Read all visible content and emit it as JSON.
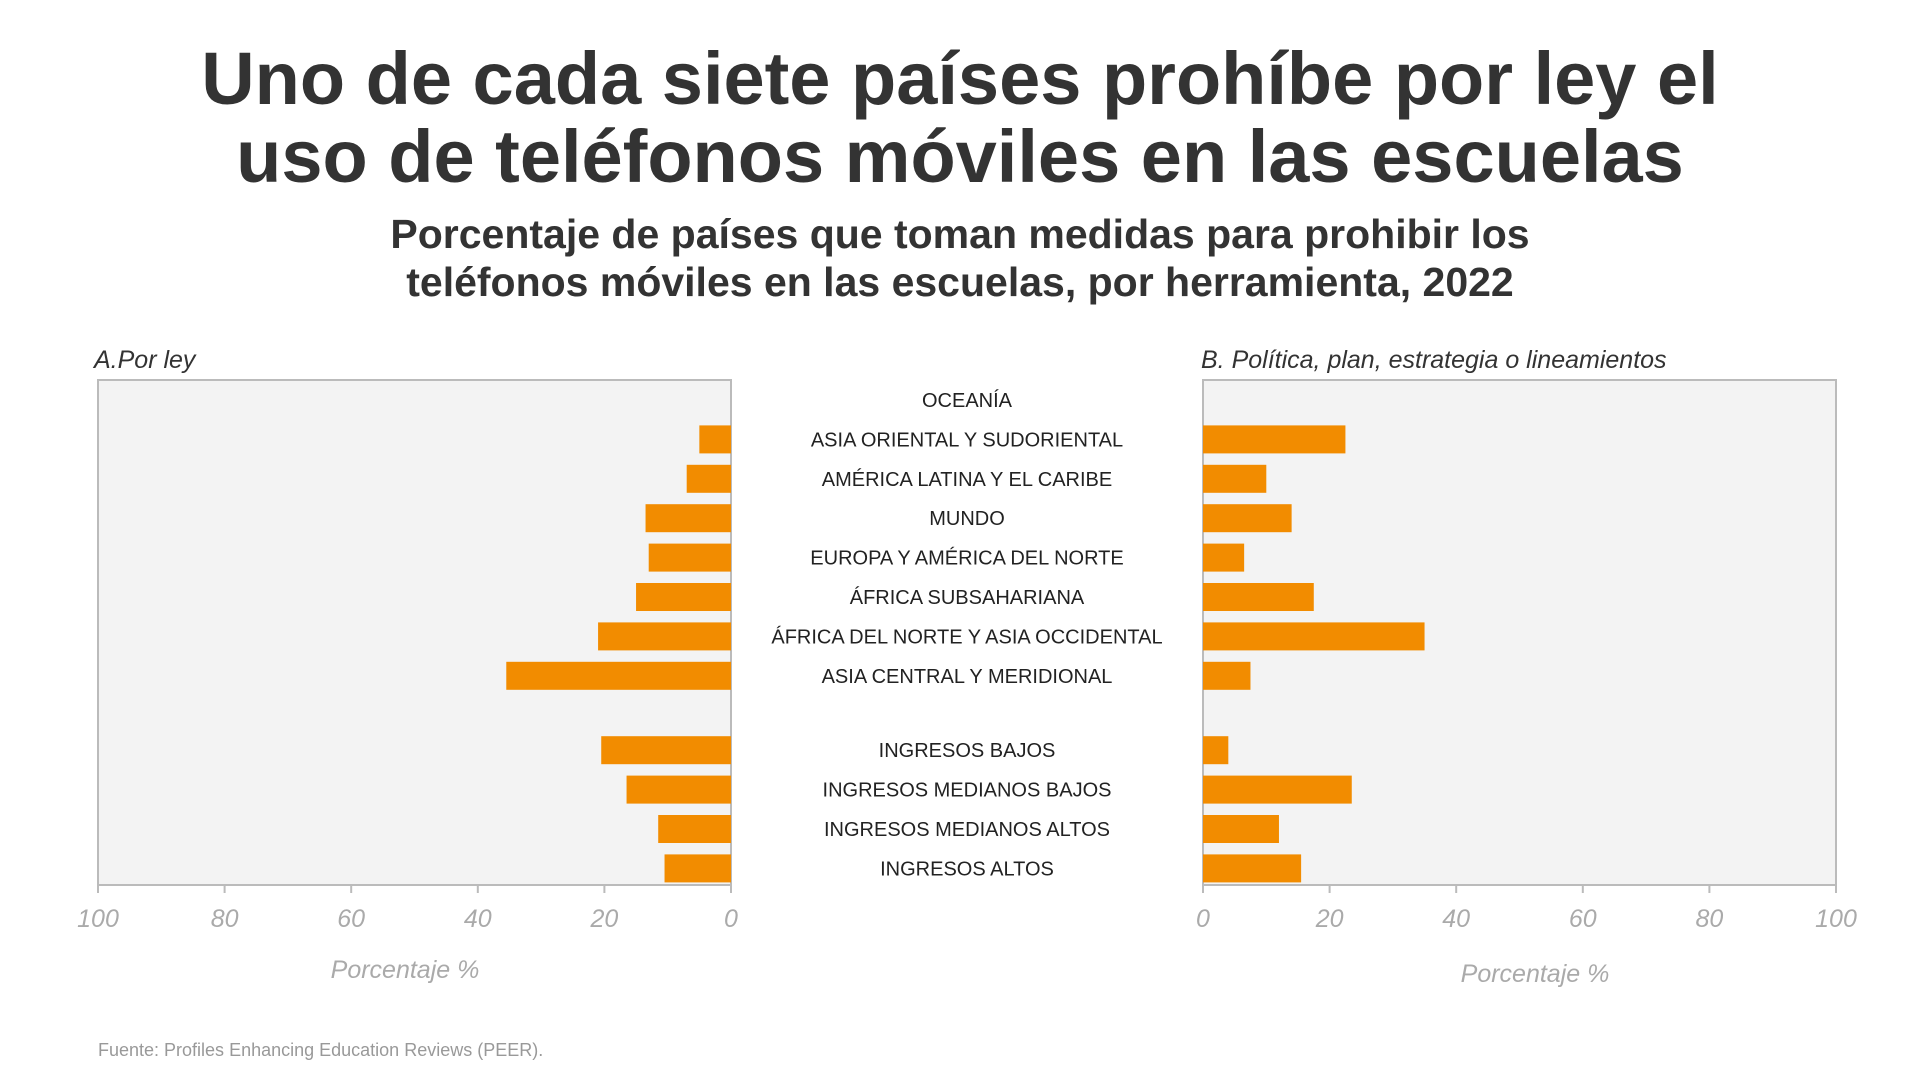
{
  "header": {
    "title_line_1": "Uno de cada siete países prohíbe por ley el",
    "title_line_2": "uso de teléfonos móviles en las escuelas",
    "subtitle_line_1": "Porcentaje de países que toman medidas para prohibir los",
    "subtitle_line_2": "teléfonos móviles en las escuelas, por herramienta, 2022"
  },
  "footer": {
    "source": "Fuente: Profiles Enhancing Education Reviews (PEER)."
  },
  "colors": {
    "bar": "#F28C00",
    "panel_bg": "#F3F3F3",
    "panel_border": "#BBBBBB"
  },
  "chart_data": {
    "type": "bar",
    "orientation": "horizontal",
    "title": "Uno de cada siete países prohíbe por ley el uso de teléfonos móviles en las escuelas",
    "subtitle": "Porcentaje de países que toman medidas para prohibir los teléfonos móviles en las escuelas, por herramienta, 2022",
    "categories": [
      "OCEANÍA",
      "ASIA ORIENTAL Y SUDORIENTAL",
      "AMÉRICA LATINA Y EL CARIBE",
      "MUNDO",
      "EUROPA Y AMÉRICA DEL NORTE",
      "ÁFRICA SUBSAHARIANA",
      "ÁFRICA DEL NORTE Y ASIA OCCIDENTAL",
      "ASIA CENTRAL Y MERIDIONAL",
      "INGRESOS BAJOS",
      "INGRESOS MEDIANOS BAJOS",
      "INGRESOS MEDIANOS ALTOS",
      "INGRESOS ALTOS"
    ],
    "group_break_after_index": 7,
    "xlim": [
      0,
      100
    ],
    "ticks": [
      0,
      20,
      40,
      60,
      80,
      100
    ],
    "xlabel": "Porcentaje %",
    "series": [
      {
        "name": "A.Por ley",
        "direction": "left",
        "values": [
          0,
          5,
          7,
          13.5,
          13,
          15,
          21,
          35.5,
          20.5,
          16.5,
          11.5,
          10.5
        ]
      },
      {
        "name": "B. Política, plan, estrategia o lineamientos",
        "direction": "right",
        "values": [
          0,
          22.5,
          10,
          14,
          6.5,
          17.5,
          35,
          7.5,
          4,
          23.5,
          12,
          15.5
        ]
      }
    ]
  }
}
